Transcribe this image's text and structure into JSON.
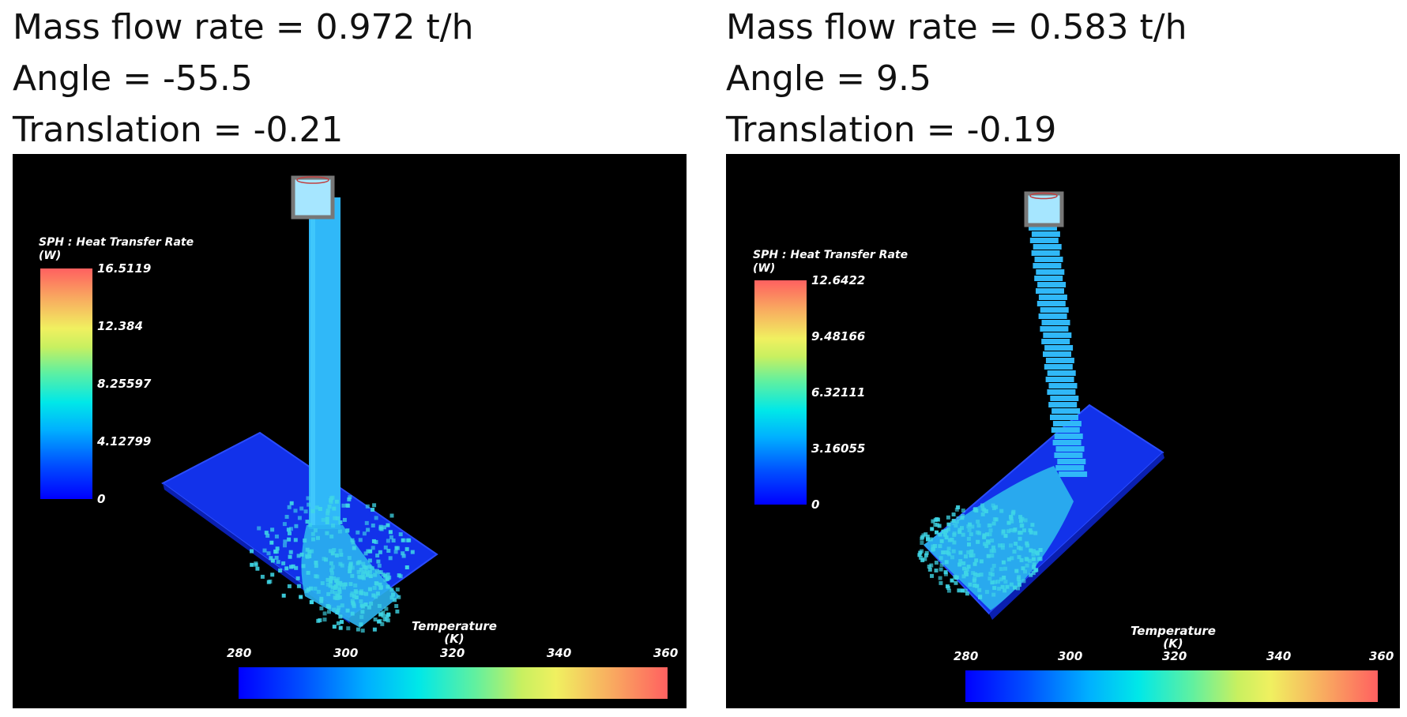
{
  "panels": [
    {
      "mass_flow": "Mass flow rate = 0.972 t/h",
      "angle": "Angle = -55.5",
      "translation": "Translation = -0.21",
      "vertical_legend": {
        "title_line1": "SPH : Heat Transfer Rate",
        "title_line2": "(W)",
        "ticks": [
          "16.5119",
          "12.384",
          "8.25597",
          "4.12799",
          "0"
        ]
      },
      "horizontal_legend": {
        "title_line1": "Temperature",
        "title_line2": "(K)",
        "ticks": [
          "280",
          "300",
          "320",
          "340",
          "360"
        ]
      }
    },
    {
      "mass_flow": "Mass flow rate = 0.583 t/h",
      "angle": "Angle = 9.5",
      "translation": "Translation = -0.19",
      "vertical_legend": {
        "title_line1": "SPH : Heat Transfer Rate",
        "title_line2": "(W)",
        "ticks": [
          "12.6422",
          "9.48166",
          "6.32111",
          "3.16055",
          "0"
        ]
      },
      "horizontal_legend": {
        "title_line1": "Temperature",
        "title_line2": "(K)",
        "ticks": [
          "280",
          "300",
          "320",
          "340",
          "360"
        ]
      }
    }
  ],
  "colors": {
    "background": "#000000",
    "plate": "#1030ee",
    "stream": "#33bfff",
    "nozzle": "#9ee6ff",
    "nozzle_rim": "#8a8a8a",
    "particle": "#40e0d8"
  }
}
